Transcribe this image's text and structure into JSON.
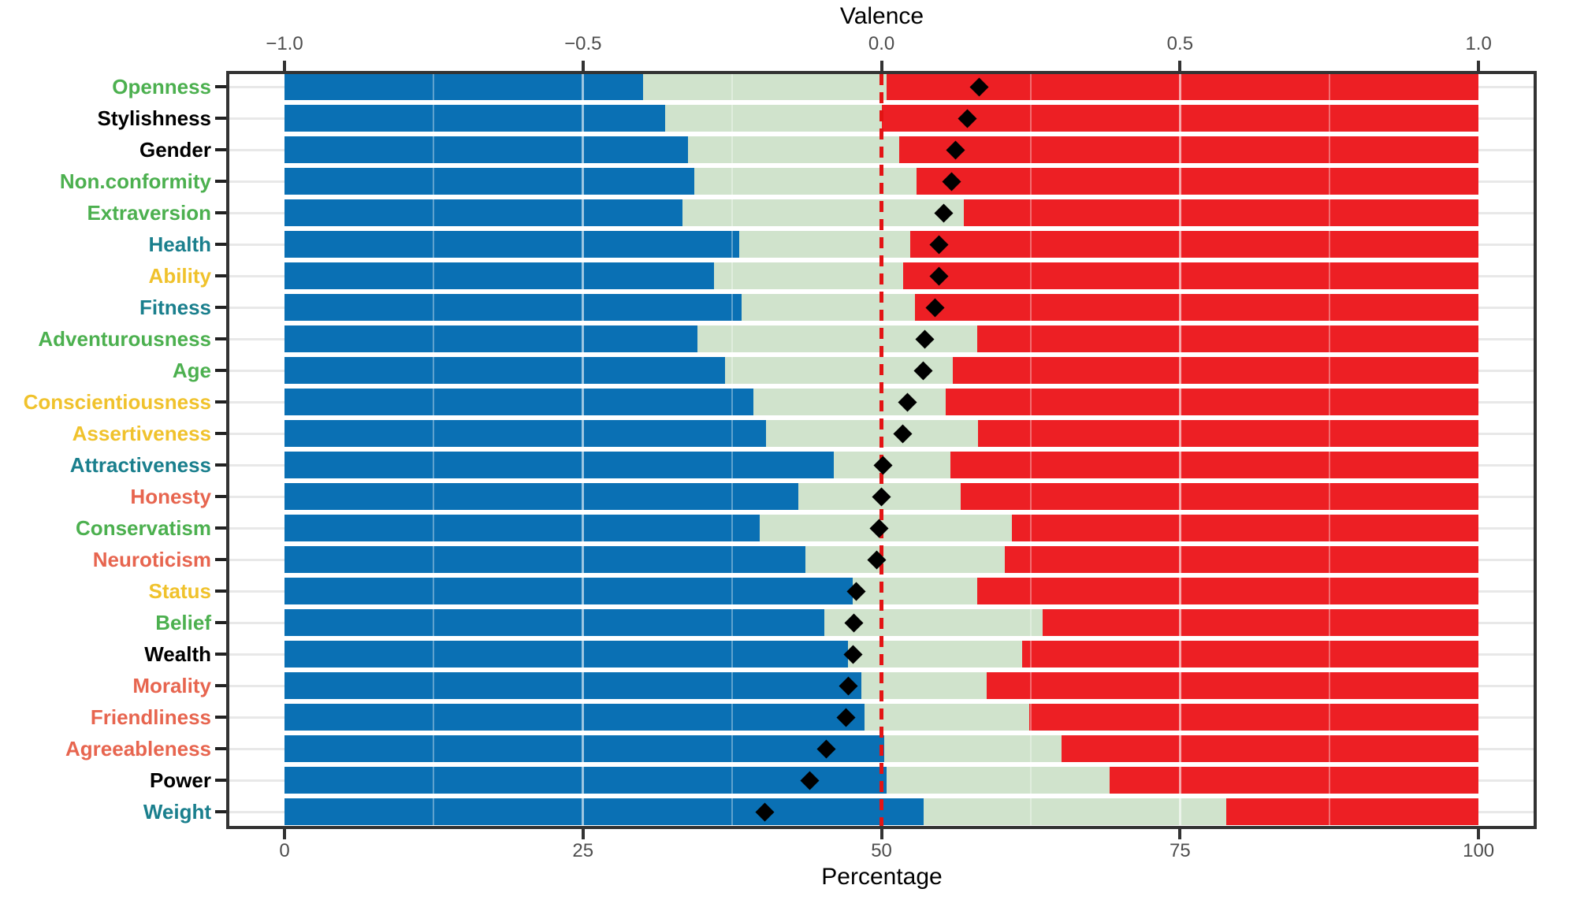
{
  "chart_data": {
    "type": "bar",
    "variant": "diverging-stacked-horizontal",
    "top_axis": {
      "title": "Valence",
      "tick_labels": [
        "−1.0",
        "−0.5",
        "0.0",
        "0.5",
        "1.0"
      ],
      "tick_pct": [
        0,
        25,
        50,
        75,
        100
      ],
      "range": [
        -1.0,
        1.0
      ]
    },
    "bottom_axis": {
      "title": "Percentage",
      "tick_labels": [
        "0",
        "25",
        "50",
        "75",
        "100"
      ],
      "tick_pct": [
        0,
        25,
        50,
        75,
        100
      ],
      "range": [
        0,
        100
      ]
    },
    "reference_line": {
      "percentage": 50,
      "color": "#e31414",
      "style": "dashed"
    },
    "segment_colors": {
      "negative": "#0a70b4",
      "neutral": "#d0e3cc",
      "positive": "#ed1f24"
    },
    "marker": {
      "shape": "diamond",
      "color": "#000000",
      "meaning": "mean valence"
    },
    "label_palette": {
      "green": "#4cb04f",
      "black": "#000000",
      "teal": "#1a7f8d",
      "yellow": "#f0c22c",
      "orange": "#e7654f"
    },
    "grid": {
      "major_pct": [
        25,
        75
      ],
      "minor_pct": [
        12.5,
        37.5,
        62.5,
        87.5
      ]
    },
    "rows": [
      {
        "label": "Openness",
        "label_color": "green",
        "negative_pct": 30.0,
        "neutral_pct": 20.4,
        "positive_pct": 49.6,
        "valence": 0.164
      },
      {
        "label": "Stylishness",
        "label_color": "black",
        "negative_pct": 31.9,
        "neutral_pct": 18.1,
        "positive_pct": 50.0,
        "valence": 0.144
      },
      {
        "label": "Gender",
        "label_color": "black",
        "negative_pct": 33.8,
        "neutral_pct": 17.7,
        "positive_pct": 48.5,
        "valence": 0.124
      },
      {
        "label": "Non.conformity",
        "label_color": "green",
        "negative_pct": 34.3,
        "neutral_pct": 18.6,
        "positive_pct": 47.1,
        "valence": 0.118
      },
      {
        "label": "Extraversion",
        "label_color": "green",
        "negative_pct": 33.3,
        "neutral_pct": 23.6,
        "positive_pct": 43.1,
        "valence": 0.104
      },
      {
        "label": "Health",
        "label_color": "teal",
        "negative_pct": 38.1,
        "neutral_pct": 14.3,
        "positive_pct": 47.6,
        "valence": 0.096
      },
      {
        "label": "Ability",
        "label_color": "yellow",
        "negative_pct": 36.0,
        "neutral_pct": 15.8,
        "positive_pct": 48.2,
        "valence": 0.096
      },
      {
        "label": "Fitness",
        "label_color": "teal",
        "negative_pct": 38.3,
        "neutral_pct": 14.5,
        "positive_pct": 47.2,
        "valence": 0.09
      },
      {
        "label": "Adventurousness",
        "label_color": "green",
        "negative_pct": 34.6,
        "neutral_pct": 23.4,
        "positive_pct": 42.0,
        "valence": 0.072
      },
      {
        "label": "Age",
        "label_color": "green",
        "negative_pct": 36.9,
        "neutral_pct": 19.1,
        "positive_pct": 44.0,
        "valence": 0.07
      },
      {
        "label": "Conscientiousness",
        "label_color": "yellow",
        "negative_pct": 39.3,
        "neutral_pct": 16.1,
        "positive_pct": 44.6,
        "valence": 0.044
      },
      {
        "label": "Assertiveness",
        "label_color": "yellow",
        "negative_pct": 40.3,
        "neutral_pct": 17.8,
        "positive_pct": 41.9,
        "valence": 0.036
      },
      {
        "label": "Attractiveness",
        "label_color": "teal",
        "negative_pct": 46.0,
        "neutral_pct": 9.8,
        "positive_pct": 44.2,
        "valence": 0.002
      },
      {
        "label": "Honesty",
        "label_color": "orange",
        "negative_pct": 43.0,
        "neutral_pct": 13.6,
        "positive_pct": 43.4,
        "valence": 0.0
      },
      {
        "label": "Conservatism",
        "label_color": "green",
        "negative_pct": 39.8,
        "neutral_pct": 21.1,
        "positive_pct": 39.1,
        "valence": -0.004
      },
      {
        "label": "Neuroticism",
        "label_color": "orange",
        "negative_pct": 43.6,
        "neutral_pct": 16.7,
        "positive_pct": 39.7,
        "valence": -0.008
      },
      {
        "label": "Status",
        "label_color": "yellow",
        "negative_pct": 47.6,
        "neutral_pct": 10.4,
        "positive_pct": 42.0,
        "valence": -0.042
      },
      {
        "label": "Belief",
        "label_color": "green",
        "negative_pct": 45.2,
        "neutral_pct": 18.3,
        "positive_pct": 36.5,
        "valence": -0.046
      },
      {
        "label": "Wealth",
        "label_color": "black",
        "negative_pct": 47.2,
        "neutral_pct": 14.6,
        "positive_pct": 38.2,
        "valence": -0.048
      },
      {
        "label": "Morality",
        "label_color": "orange",
        "negative_pct": 48.3,
        "neutral_pct": 10.5,
        "positive_pct": 41.2,
        "valence": -0.056
      },
      {
        "label": "Friendliness",
        "label_color": "orange",
        "negative_pct": 48.6,
        "neutral_pct": 13.8,
        "positive_pct": 37.6,
        "valence": -0.06
      },
      {
        "label": "Agreeableness",
        "label_color": "orange",
        "negative_pct": 50.2,
        "neutral_pct": 14.9,
        "positive_pct": 34.9,
        "valence": -0.092
      },
      {
        "label": "Power",
        "label_color": "black",
        "negative_pct": 50.4,
        "neutral_pct": 18.7,
        "positive_pct": 30.9,
        "valence": -0.12
      },
      {
        "label": "Weight",
        "label_color": "teal",
        "negative_pct": 53.5,
        "neutral_pct": 25.4,
        "positive_pct": 21.1,
        "valence": -0.196
      }
    ]
  }
}
